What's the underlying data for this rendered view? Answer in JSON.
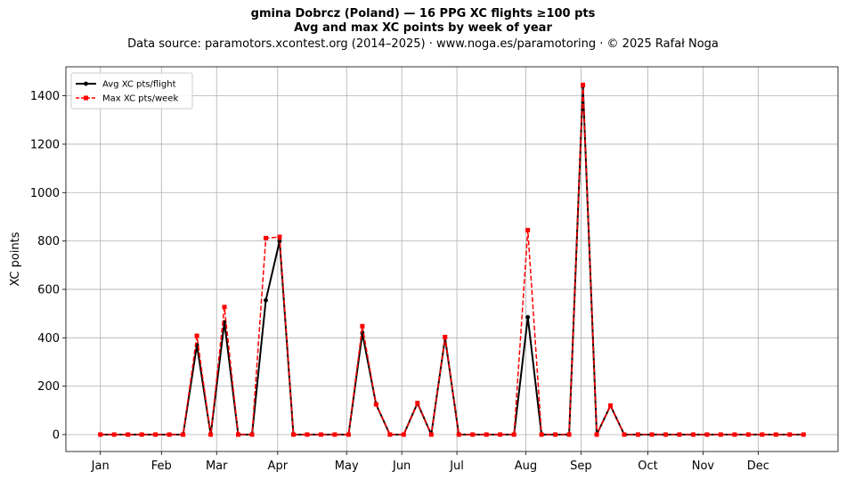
{
  "title": {
    "line1": "gmina Dobrcz (Poland)  —  16 PPG XC flights ≥100 pts",
    "line2": "Avg and max XC points by week of year",
    "source": "Data source: paramotors.xcontest.org (2014–2025)  ·  www.noga.es/paramotoring  ·  © 2025 Rafał Noga"
  },
  "chart_data": {
    "type": "line",
    "title": "Avg and max XC points by week of year",
    "xlabel": "",
    "ylabel": "XC points",
    "x": [
      1,
      2,
      3,
      4,
      5,
      6,
      7,
      8,
      9,
      10,
      11,
      12,
      13,
      14,
      15,
      16,
      17,
      18,
      19,
      20,
      21,
      22,
      23,
      24,
      25,
      26,
      27,
      28,
      29,
      30,
      31,
      32,
      33,
      34,
      35,
      36,
      37,
      38,
      39,
      40,
      41,
      42,
      43,
      44,
      45,
      46,
      47,
      48,
      49,
      50,
      51,
      52
    ],
    "ylim": [
      -70,
      1520
    ],
    "yticks": [
      0,
      200,
      400,
      600,
      800,
      1000,
      1200,
      1400
    ],
    "month_ticks": [
      {
        "label": "Jan",
        "week": 1
      },
      {
        "label": "Feb",
        "week": 5.43
      },
      {
        "label": "Mar",
        "week": 9.43
      },
      {
        "label": "Apr",
        "week": 13.86
      },
      {
        "label": "May",
        "week": 18.86
      },
      {
        "label": "Jun",
        "week": 22.86
      },
      {
        "label": "Jul",
        "week": 26.86
      },
      {
        "label": "Aug",
        "week": 31.86
      },
      {
        "label": "Sep",
        "week": 35.86
      },
      {
        "label": "Oct",
        "week": 40.71
      },
      {
        "label": "Nov",
        "week": 44.71
      },
      {
        "label": "Dec",
        "week": 48.71
      }
    ],
    "grid": true,
    "legend_position": "top-left",
    "series": [
      {
        "name": "Avg XC pts/flight",
        "color": "#000000",
        "style": "solid",
        "marker": "circle",
        "values": [
          0,
          0,
          0,
          0,
          0,
          0,
          0,
          370,
          0,
          465,
          0,
          0,
          555,
          800,
          0,
          0,
          0,
          0,
          0,
          420,
          125,
          0,
          0,
          130,
          0,
          400,
          0,
          0,
          0,
          0,
          0,
          485,
          0,
          0,
          0,
          1440,
          0,
          120,
          0,
          0,
          0,
          0,
          0,
          0,
          0,
          0,
          0,
          0,
          0,
          0,
          0,
          0
        ]
      },
      {
        "name": "Max XC pts/week",
        "color": "#ff0000",
        "style": "dashed",
        "marker": "square",
        "values": [
          0,
          0,
          0,
          0,
          0,
          0,
          0,
          408,
          0,
          527,
          0,
          0,
          812,
          817,
          0,
          0,
          0,
          0,
          0,
          448,
          125,
          0,
          0,
          130,
          0,
          403,
          0,
          0,
          0,
          0,
          0,
          845,
          0,
          0,
          0,
          1445,
          0,
          120,
          0,
          0,
          0,
          0,
          0,
          0,
          0,
          0,
          0,
          0,
          0,
          0,
          0,
          0
        ]
      }
    ]
  }
}
